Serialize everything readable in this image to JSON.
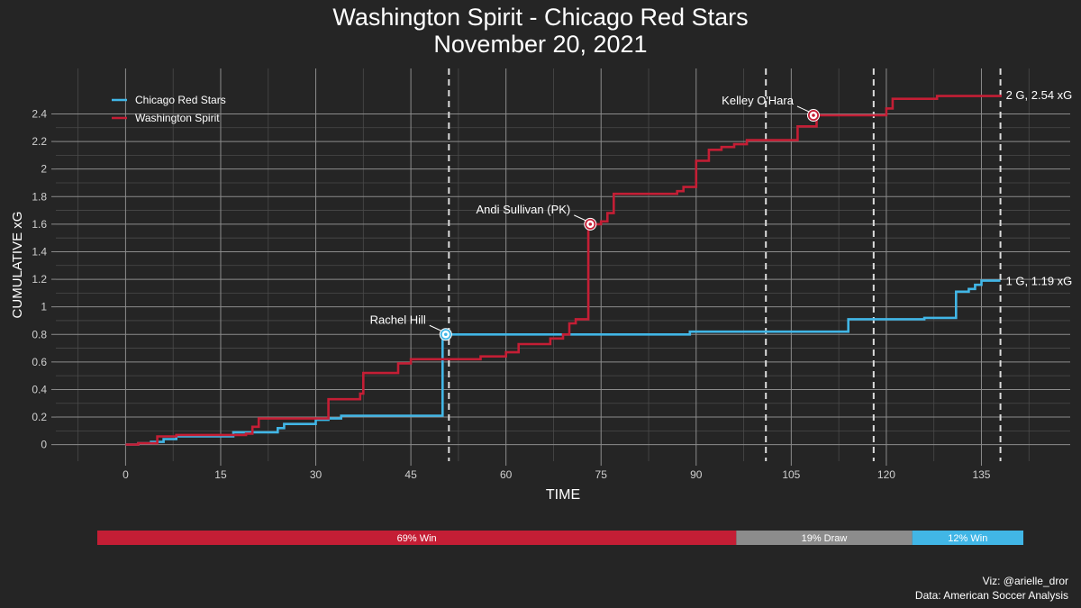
{
  "title": "Washington Spirit - Chicago Red Stars",
  "subtitle": "November 20, 2021",
  "credits": {
    "viz": "Viz: @arielle_dror",
    "data": "Data: American Soccer Analysis"
  },
  "colors": {
    "background": "#252525",
    "grid": "#8c8c8c",
    "washington": "#c41e35",
    "chicago": "#41b6e6",
    "draw": "#8c8c8c"
  },
  "chart_data": {
    "type": "line",
    "xlabel": "TIME",
    "ylabel": "CUMULATIVE xG",
    "xlim": [
      -11,
      149
    ],
    "ylim": [
      -0.12,
      2.73
    ],
    "xticks": [
      0,
      15,
      30,
      45,
      60,
      75,
      90,
      105,
      120,
      135
    ],
    "yticks": [
      0,
      0.2,
      0.4,
      0.6,
      0.8,
      1,
      1.2,
      1.4,
      1.6,
      1.8,
      2,
      2.2,
      2.4
    ],
    "ytick_labels": [
      "0",
      "0.2",
      "0.4",
      "0.6",
      "0.8",
      "1",
      "1.2",
      "1.4",
      "1.6",
      "1.8",
      "2",
      "2.2",
      "2.4"
    ],
    "grid": true,
    "legend_position": "top-left",
    "period_markers": [
      51,
      101,
      118,
      138
    ],
    "series": [
      {
        "name": "Chicago Red Stars",
        "color": "#41b6e6",
        "steps": [
          [
            0,
            0
          ],
          [
            2,
            0.01
          ],
          [
            4,
            0.02
          ],
          [
            6,
            0.04
          ],
          [
            8,
            0.06
          ],
          [
            17,
            0.09
          ],
          [
            24,
            0.12
          ],
          [
            25,
            0.15
          ],
          [
            30,
            0.18
          ],
          [
            32,
            0.19
          ],
          [
            34,
            0.21
          ],
          [
            50,
            0.21
          ],
          [
            50,
            0.8
          ],
          [
            89,
            0.82
          ],
          [
            114,
            0.91
          ],
          [
            126,
            0.92
          ],
          [
            131,
            1.11
          ],
          [
            133,
            1.13
          ],
          [
            134,
            1.16
          ],
          [
            135,
            1.19
          ],
          [
            138,
            1.19
          ]
        ],
        "end_label": "1 G, 1.19 xG"
      },
      {
        "name": "Washington Spirit",
        "color": "#c41e35",
        "steps": [
          [
            0,
            0
          ],
          [
            2,
            0.01
          ],
          [
            5,
            0.06
          ],
          [
            8,
            0.07
          ],
          [
            19,
            0.08
          ],
          [
            20,
            0.13
          ],
          [
            21,
            0.19
          ],
          [
            32,
            0.33
          ],
          [
            37,
            0.37
          ],
          [
            37.5,
            0.52
          ],
          [
            43,
            0.59
          ],
          [
            45,
            0.62
          ],
          [
            56,
            0.64
          ],
          [
            60,
            0.67
          ],
          [
            62,
            0.73
          ],
          [
            67,
            0.77
          ],
          [
            69,
            0.8
          ],
          [
            70,
            0.88
          ],
          [
            71,
            0.91
          ],
          [
            73,
            1.6
          ],
          [
            75,
            1.62
          ],
          [
            76,
            1.68
          ],
          [
            77,
            1.82
          ],
          [
            87,
            1.84
          ],
          [
            88,
            1.87
          ],
          [
            90,
            2.06
          ],
          [
            92,
            2.14
          ],
          [
            94,
            2.16
          ],
          [
            96,
            2.18
          ],
          [
            98,
            2.21
          ],
          [
            106,
            2.31
          ],
          [
            109,
            2.39
          ],
          [
            120,
            2.44
          ],
          [
            121,
            2.51
          ],
          [
            128,
            2.53
          ],
          [
            138,
            2.54
          ]
        ],
        "end_label": "2 G, 2.54 xG"
      }
    ],
    "goal_annotations": [
      {
        "label": "Rachel Hill",
        "team": "chicago",
        "x": 50.5,
        "y": 0.8
      },
      {
        "label": "Andi Sullivan (PK)",
        "team": "washington",
        "x": 73.3,
        "y": 1.6
      },
      {
        "label": "Kelley O'Hara",
        "team": "washington",
        "x": 108.5,
        "y": 2.39
      }
    ],
    "outcome_bar": [
      {
        "label": "69% Win",
        "fraction": 0.69,
        "color": "#c41e35"
      },
      {
        "label": "19% Draw",
        "fraction": 0.19,
        "color": "#8c8c8c"
      },
      {
        "label": "12% Win",
        "fraction": 0.12,
        "color": "#41b6e6"
      }
    ]
  }
}
